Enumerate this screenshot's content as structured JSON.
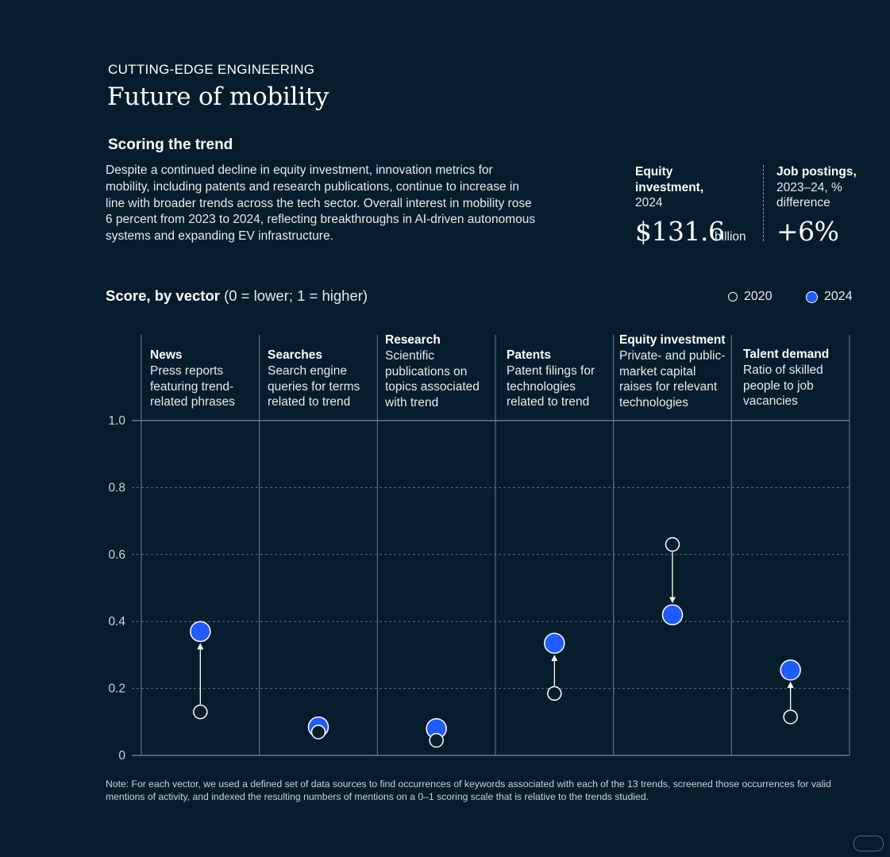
{
  "header": {
    "eyebrow": "CUTTING-EDGE ENGINEERING",
    "title": "Future of mobility"
  },
  "section": {
    "heading": "Scoring the trend",
    "intro": "Despite a continued decline in equity investment, innovation metrics for mobility, including patents and research publications, continue to increase in line with broader trends across the tech sector. Overall interest in mobility rose 6 percent from 2023 to 2024, reflecting breakthroughs in AI-driven autonomous systems and expanding EV infrastructure."
  },
  "kpis": {
    "equity": {
      "label_bold": "Equity investment,",
      "label_sub": "2024",
      "value": "$131.6",
      "unit": "billion"
    },
    "jobs": {
      "label_bold": "Job postings,",
      "label_sub": "2023–24, % difference",
      "value": "+6%"
    }
  },
  "chart": {
    "title_bold": "Score, by vector",
    "title_rest": " (0 = lower; 1 = higher)",
    "legend": [
      {
        "label": "2020",
        "color": "#051c2c"
      },
      {
        "label": "2024",
        "color": "#1f5cff"
      }
    ]
  },
  "chart_data": {
    "type": "scatter",
    "title": "Score, by vector (0 = lower; 1 = higher)",
    "ylim": [
      0,
      1
    ],
    "yticks": [
      "0",
      "0.2",
      "0.4",
      "0.6",
      "0.8",
      "1.0"
    ],
    "categories": [
      {
        "name": "News",
        "desc": "Press reports featuring trend-related phrases"
      },
      {
        "name": "Searches",
        "desc": "Search engine queries for terms related to trend"
      },
      {
        "name": "Research",
        "desc": "Scientific publications on topics associated with trend"
      },
      {
        "name": "Patents",
        "desc": "Patent filings for technologies related to trend"
      },
      {
        "name": "Equity investment",
        "desc": "Private- and public-market capital raises for relevant technologies"
      },
      {
        "name": "Talent demand",
        "desc": "Ratio of skilled people to job vacancies"
      }
    ],
    "series": [
      {
        "name": "2020",
        "values": [
          0.13,
          0.07,
          0.045,
          0.185,
          0.63,
          0.115
        ]
      },
      {
        "name": "2024",
        "values": [
          0.37,
          0.085,
          0.08,
          0.335,
          0.42,
          0.255
        ]
      }
    ]
  },
  "note": "Note: For each vector, we used a defined set of data sources to find occurrences of keywords associated with each of the 13 trends, screened those occurrences for valid mentions of activity, and indexed the resulting numbers of mentions on a 0–1 scoring scale that is relative to the trends studied."
}
